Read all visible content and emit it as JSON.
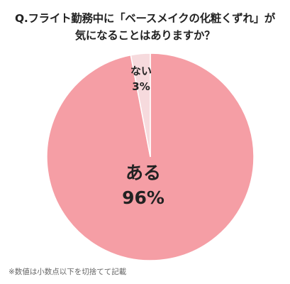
{
  "title": {
    "line1": "Q.フライト勤務中に「ベースメイクの化粧くずれ」が",
    "line2": "気になることはありますか？"
  },
  "note": "※数値は小数点以下を切捨てて記載",
  "chart_data": {
    "type": "pie",
    "slices": [
      {
        "label": "ある",
        "value": 96,
        "display": "96%",
        "color": "#f59ea5"
      },
      {
        "label": "ない",
        "value": 3,
        "display": "3%",
        "color": "#f6dadd"
      }
    ],
    "start": "top",
    "direction": "clockwise",
    "border_color": "#ffffff"
  }
}
